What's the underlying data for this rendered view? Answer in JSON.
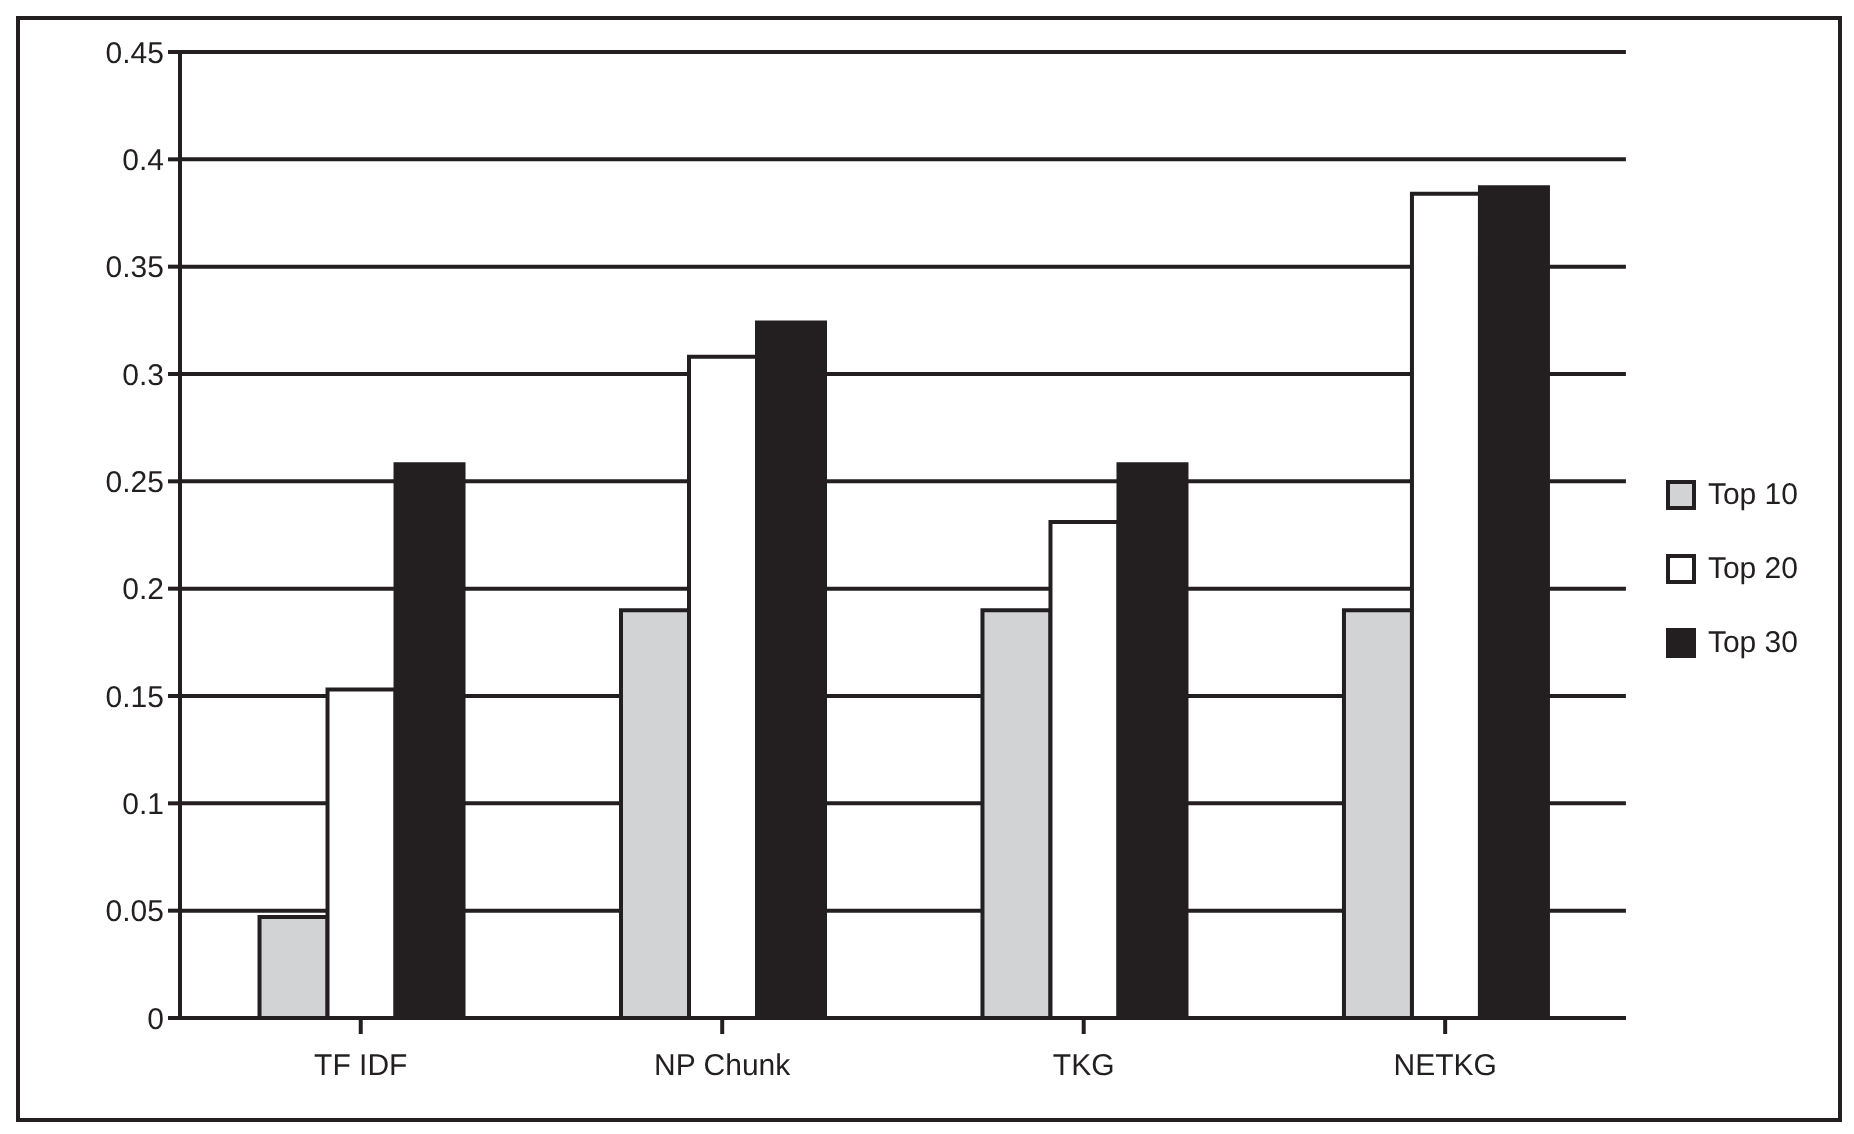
{
  "chart_data": {
    "type": "bar",
    "categories": [
      "TF IDF",
      "NP Chunk",
      "TKG",
      "NETKG"
    ],
    "series": [
      {
        "name": "Top 10",
        "color": "#d1d3d4",
        "values": [
          0.047,
          0.19,
          0.19,
          0.19
        ]
      },
      {
        "name": "Top 20",
        "color": "#ffffff",
        "values": [
          0.153,
          0.308,
          0.231,
          0.384
        ]
      },
      {
        "name": "Top 30",
        "color": "#231f20",
        "values": [
          0.258,
          0.324,
          0.258,
          0.387
        ]
      }
    ],
    "ylim": [
      0,
      0.45
    ],
    "yticks": [
      0,
      0.05,
      0.1,
      0.15,
      0.2,
      0.25,
      0.3,
      0.35,
      0.4,
      0.45
    ],
    "grid": "y",
    "legend": "right"
  }
}
